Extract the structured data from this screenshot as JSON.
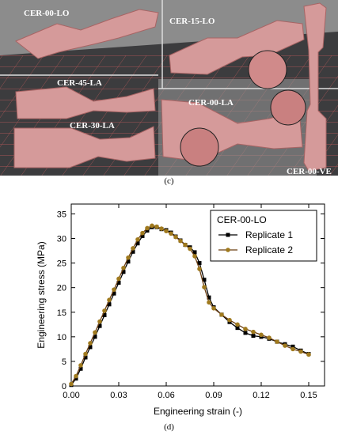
{
  "panel_c": {
    "caption": "(c)",
    "specimens": [
      "CER-00-LO",
      "CER-15-LO",
      "CER-45-LA",
      "CER-00-LA",
      "CER-30-LA",
      "CER-00-VE"
    ],
    "colors": {
      "sky": "#8a8a8a",
      "floor": "#3e3e40",
      "grid": "#c25a5a",
      "specimen": "#d79a9a",
      "specimen_edge": "#a86464"
    }
  },
  "panel_d": {
    "caption": "(d)"
  },
  "chart_data": {
    "type": "line",
    "xlabel": "Engineering strain (-)",
    "ylabel": "Engineering stress (MPa)",
    "xlim": [
      0,
      0.16
    ],
    "ylim": [
      0,
      37
    ],
    "x_ticks": [
      "0.00",
      "0.03",
      "0.06",
      "0.09",
      "0.12",
      "0.15"
    ],
    "y_ticks": [
      "0",
      "5",
      "10",
      "15",
      "20",
      "25",
      "30",
      "35"
    ],
    "legend": {
      "title": "CER-00-LO",
      "position": "top-right"
    },
    "series": [
      {
        "name": "Replicate 1",
        "color": "#000000",
        "marker": "square",
        "x": [
          0.0,
          0.003,
          0.006,
          0.009,
          0.012,
          0.015,
          0.018,
          0.021,
          0.024,
          0.027,
          0.03,
          0.033,
          0.036,
          0.039,
          0.042,
          0.045,
          0.048,
          0.051,
          0.054,
          0.057,
          0.06,
          0.063,
          0.066,
          0.069,
          0.072,
          0.075,
          0.078,
          0.081,
          0.084,
          0.087,
          0.09,
          0.095,
          0.1,
          0.105,
          0.11,
          0.115,
          0.12,
          0.125,
          0.13,
          0.135,
          0.14,
          0.145,
          0.15
        ],
        "y": [
          0.2,
          1.5,
          3.5,
          5.8,
          7.9,
          10.0,
          12.2,
          14.4,
          16.6,
          18.8,
          21.0,
          23.2,
          25.3,
          27.3,
          29.0,
          30.5,
          31.6,
          32.3,
          32.3,
          31.9,
          31.7,
          31.2,
          30.4,
          29.6,
          28.7,
          28.2,
          27.2,
          25.0,
          21.6,
          18.0,
          16.0,
          14.5,
          13.0,
          11.8,
          10.8,
          10.2,
          10.0,
          9.6,
          9.0,
          8.5,
          8.0,
          7.2,
          6.5
        ]
      },
      {
        "name": "Replicate 2",
        "color": "#6b3e12",
        "marker": "circle",
        "marker_color": "#a07a1e",
        "x": [
          0.0,
          0.003,
          0.006,
          0.009,
          0.012,
          0.015,
          0.018,
          0.021,
          0.024,
          0.027,
          0.03,
          0.033,
          0.036,
          0.039,
          0.042,
          0.045,
          0.048,
          0.051,
          0.054,
          0.057,
          0.06,
          0.063,
          0.066,
          0.069,
          0.072,
          0.075,
          0.078,
          0.081,
          0.084,
          0.087,
          0.09,
          0.095,
          0.1,
          0.105,
          0.11,
          0.115,
          0.12,
          0.125,
          0.13,
          0.135,
          0.14,
          0.145,
          0.15
        ],
        "y": [
          0.4,
          2.0,
          4.2,
          6.5,
          8.7,
          10.9,
          13.1,
          15.3,
          17.5,
          19.6,
          21.8,
          24.0,
          26.1,
          28.0,
          29.8,
          31.1,
          32.1,
          32.6,
          32.4,
          32.0,
          31.5,
          31.0,
          30.3,
          29.5,
          28.7,
          27.9,
          26.4,
          23.8,
          20.1,
          17.0,
          15.8,
          14.5,
          13.4,
          12.5,
          11.6,
          11.0,
          10.4,
          9.8,
          9.0,
          8.2,
          7.5,
          7.0,
          6.4
        ]
      }
    ]
  }
}
